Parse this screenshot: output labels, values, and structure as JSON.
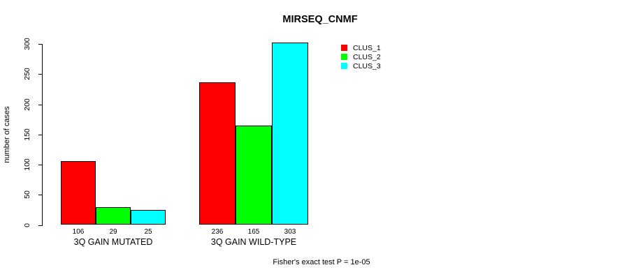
{
  "chart_data": {
    "type": "bar",
    "title": "MIRSEQ_CNMF",
    "ylabel": "number of cases",
    "xlabel": "",
    "categories": [
      "3Q GAIN MUTATED",
      "3Q GAIN WILD-TYPE"
    ],
    "series": [
      {
        "name": "CLUS_1",
        "color": "#ff0000",
        "values": [
          106,
          236
        ]
      },
      {
        "name": "CLUS_2",
        "color": "#00ff00",
        "values": [
          29,
          165
        ]
      },
      {
        "name": "CLUS_3",
        "color": "#00ffff",
        "values": [
          25,
          303
        ]
      }
    ],
    "bar_value_labels": [
      [
        "106",
        "29",
        "25"
      ],
      [
        "236",
        "165",
        "303"
      ]
    ],
    "yticks": [
      0,
      50,
      100,
      150,
      200,
      250,
      300
    ],
    "ylim": [
      0,
      300
    ],
    "grid": false,
    "legend_position": "top-right",
    "bar_border_color": "#000000",
    "footnote": "Fisher's exact test P = 1e-05"
  }
}
